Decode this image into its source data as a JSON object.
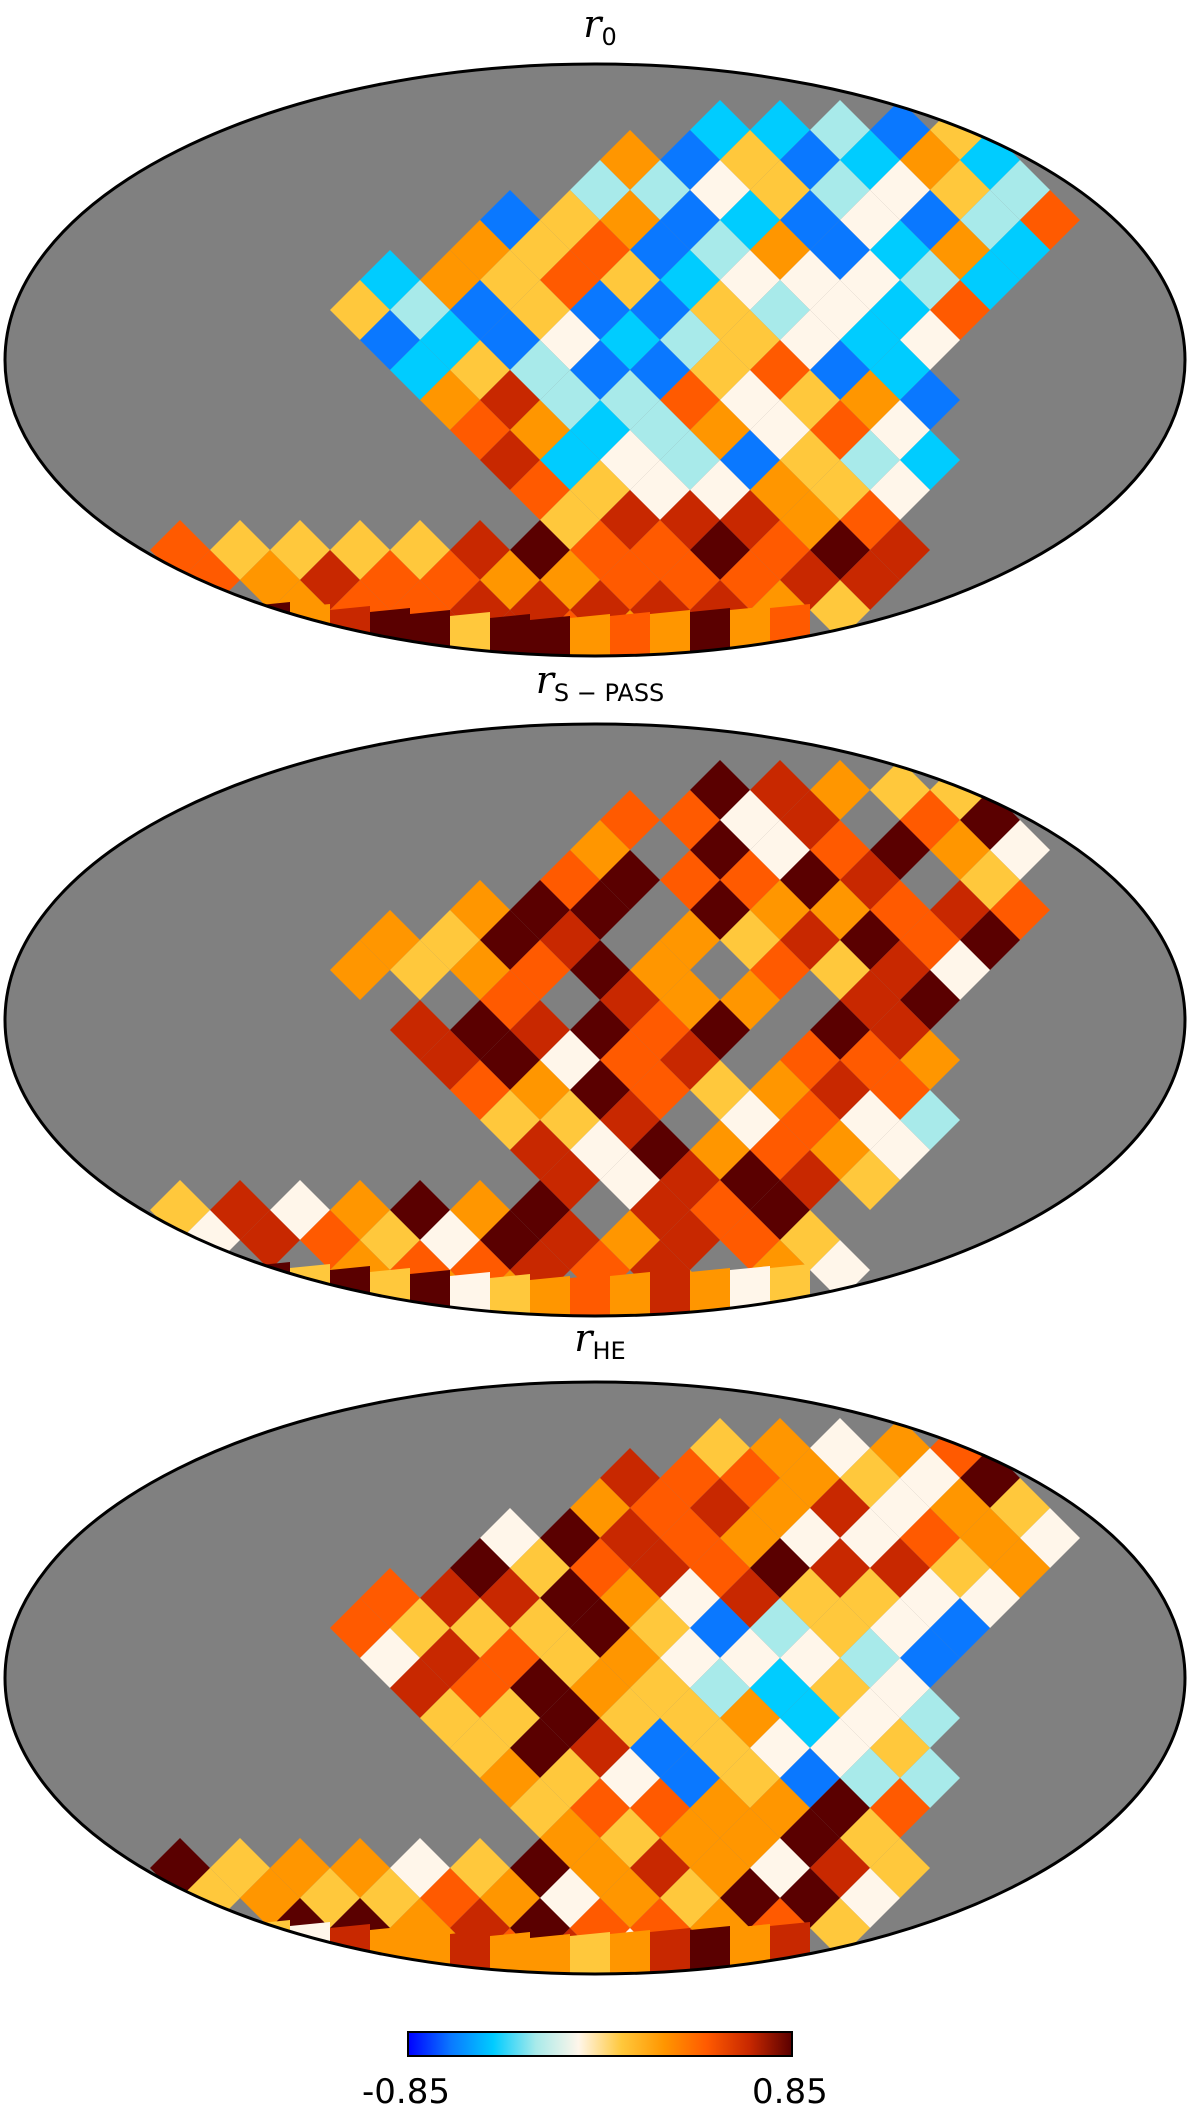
{
  "colors": {
    "background": "#808080",
    "outline": "#000000",
    "colormap": [
      "#0000ff",
      "#0a78ff",
      "#00ccff",
      "#a8eaea",
      "#fff6ea",
      "#ffc83c",
      "#ff9600",
      "#ff5a00",
      "#c82800",
      "#5a0000"
    ]
  },
  "chart_data": [
    {
      "type": "heatmap",
      "title": "r_0",
      "title_symbol": "r",
      "title_subscript": "0",
      "projection": "Mollweide",
      "colorbar_range": [
        -0.85,
        0.85
      ]
    },
    {
      "type": "heatmap",
      "title": "r_S-PASS",
      "title_symbol": "r",
      "title_subscript": "S − PASS",
      "projection": "Mollweide",
      "colorbar_range": [
        -0.85,
        0.85
      ]
    },
    {
      "type": "heatmap",
      "title": "r_HE",
      "title_symbol": "r",
      "title_subscript": "HE",
      "projection": "Mollweide",
      "colorbar_range": [
        -0.85,
        0.85
      ]
    }
  ],
  "colorbar": {
    "min_label": "-0.85",
    "max_label": "0.85"
  }
}
